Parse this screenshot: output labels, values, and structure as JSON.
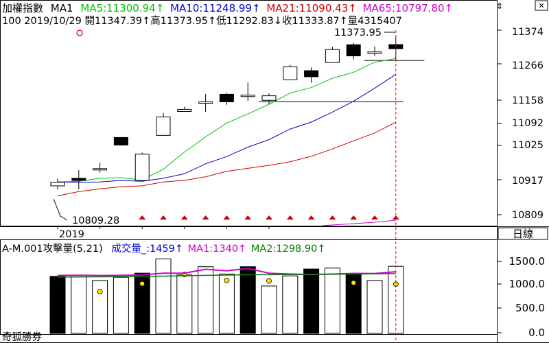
{
  "header": {
    "index_name": "加權指數",
    "ma_label": "MA1",
    "ma5": "MA5:11300.94↑",
    "ma10": "MA10:11248.99↑",
    "ma21": "MA21:11090.43↑",
    "ma65": "MA65:10797.80↑",
    "info_line": "100 2019/10/29 開11347.39↑高11373.95↑低11292.83↓收11333.87↑量4315407"
  },
  "price_axis": [
    "11374",
    "11266",
    "11158",
    "11092",
    "11025",
    "10917",
    "10809"
  ],
  "annotations": {
    "high_label": "11373.95",
    "low_label": "10809.28",
    "year_label": "2019"
  },
  "period_label": "日線",
  "lower_panel": {
    "title": "A-M.001攻擊量(5,21)",
    "vol_label": "成交量_:1459↑",
    "ma1_label": "MA1:1340↑",
    "ma2_label": "MA2:1298.90↑",
    "axis": [
      "1500.0",
      "1000.0",
      "500.0",
      "0.0"
    ]
  },
  "brand": "奇狐勝券",
  "colors": {
    "ma5": "#00c000",
    "ma10": "#0000cc",
    "ma21": "#cc0000",
    "ma65": "#cc00cc",
    "ma_panel2": "#008000",
    "title_blue": "#0000cc"
  },
  "chart_data": [
    {
      "type": "candlestick",
      "ylim": [
        10780,
        11395
      ],
      "candles": [
        {
          "o": 10880,
          "c": 10892,
          "h": 10904,
          "l": 10868
        },
        {
          "o": 10905,
          "c": 10898,
          "h": 10932,
          "l": 10868
        },
        {
          "o": 10935,
          "c": 10937,
          "h": 10957,
          "l": 10924
        },
        {
          "o": 11040,
          "c": 11015,
          "h": 11042,
          "l": 11013
        },
        {
          "o": 10898,
          "c": 10985,
          "h": 10990,
          "l": 10895
        },
        {
          "o": 11047,
          "c": 11108,
          "h": 11121,
          "l": 11047
        },
        {
          "o": 11126,
          "c": 11133,
          "h": 11142,
          "l": 11126
        },
        {
          "o": 11158,
          "c": 11158,
          "h": 11184,
          "l": 11125
        },
        {
          "o": 11183,
          "c": 11158,
          "h": 11188,
          "l": 11148
        },
        {
          "o": 11180,
          "c": 11180,
          "h": 11222,
          "l": 11160
        },
        {
          "o": 11163,
          "c": 11178,
          "h": 11186,
          "l": 11150
        },
        {
          "o": 11231,
          "c": 11274,
          "h": 11280,
          "l": 11231
        },
        {
          "o": 11261,
          "c": 11241,
          "h": 11272,
          "l": 11221
        },
        {
          "o": 11288,
          "c": 11331,
          "h": 11340,
          "l": 11288
        },
        {
          "o": 11347,
          "c": 11310,
          "h": 11354,
          "l": 11298
        },
        {
          "o": 11323,
          "c": 11323,
          "h": 11341,
          "l": 11310
        },
        {
          "o": 11347.39,
          "c": 11333.87,
          "h": 11373.95,
          "l": 11292.83
        }
      ],
      "series": [
        {
          "name": "MA5",
          "values": [
            10893,
            10895,
            10905,
            10907,
            10900,
            10935,
            10992,
            11042,
            11088,
            11118,
            11150,
            11187,
            11205,
            11236,
            11256,
            11289,
            11300.94
          ]
        },
        {
          "name": "MA10",
          "values": [
            10893,
            10892,
            10893,
            10898,
            10895,
            10905,
            10920,
            10953,
            10977,
            11008,
            11033,
            11068,
            11091,
            11124,
            11160,
            11203,
            11248.99
          ]
        },
        {
          "name": "MA21",
          "values": [
            10847,
            10861,
            10870,
            10877,
            10880,
            10893,
            10898,
            10910,
            10928,
            10938,
            10948,
            10960,
            10978,
            11002,
            11029,
            11055,
            11090.43
          ]
        },
        {
          "name": "MA65",
          "values": [
            10795,
            10797.8
          ]
        }
      ],
      "signals": [
        4,
        5,
        6,
        7,
        8,
        9,
        10,
        11,
        12,
        13,
        14,
        15,
        16
      ],
      "ref_lines": [
        {
          "y": 11158,
          "from": 10,
          "to": 17
        },
        {
          "y": 11295,
          "from": 15,
          "to": 18
        }
      ]
    },
    {
      "type": "bar",
      "ylim": [
        0,
        1700
      ],
      "volumes": [
        1240,
        1260,
        1150,
        1220,
        1310,
        1620,
        1270,
        1450,
        1290,
        1450,
        1030,
        1250,
        1400,
        1420,
        1290,
        1150,
        1459
      ],
      "filled": [
        true,
        false,
        false,
        false,
        true,
        false,
        false,
        false,
        false,
        true,
        false,
        false,
        true,
        false,
        true,
        false,
        false
      ],
      "ma1": [
        1260,
        1265,
        1258,
        1262,
        1270,
        1310,
        1310,
        1395,
        1360,
        1410,
        1310,
        1290,
        1280,
        1290,
        1305,
        1300,
        1340
      ],
      "ma2": [
        1225,
        1228,
        1230,
        1234,
        1238,
        1245,
        1252,
        1262,
        1268,
        1275,
        1276,
        1278,
        1282,
        1286,
        1290,
        1293,
        1298.9
      ],
      "dots": {
        "3": 910,
        "5": 1080,
        "7": 1280,
        "9": 1150,
        "11": 1140,
        "15": 1100,
        "17": 1070
      }
    }
  ]
}
